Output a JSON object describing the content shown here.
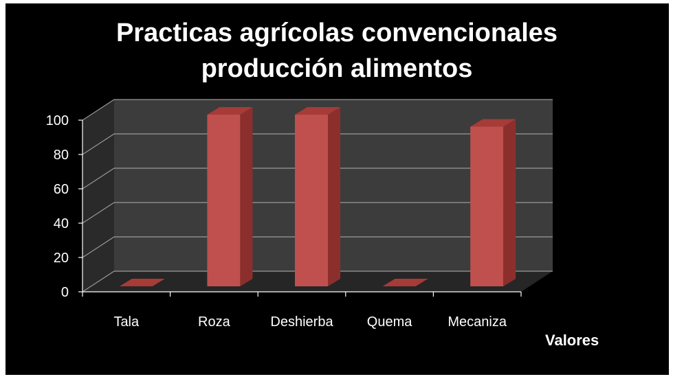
{
  "chart_data": {
    "type": "bar",
    "title_lines": [
      "Practicas agrícolas convencionales",
      "producción alimentos"
    ],
    "categories": [
      "Tala",
      "Roza",
      "Deshierba",
      "Quema",
      "Mecaniza"
    ],
    "series": [
      {
        "name": "Valores",
        "values": [
          0,
          100,
          100,
          0,
          93
        ]
      }
    ],
    "ylim": [
      0,
      100
    ],
    "yticks": [
      "0",
      "20",
      "40",
      "60",
      "80",
      "100"
    ],
    "xlabel": "",
    "ylabel": "",
    "grid": true,
    "legend": "bottom-right",
    "colors": {
      "bar_front": "#c0504d",
      "bar_side": "#8c2f2c",
      "bar_top": "#a63b38",
      "back_wall": "#3c3c3c",
      "side_wall": "#2a2a2a",
      "floor": "#262626",
      "grid": "#9a9a9a",
      "text": "#ffffff"
    }
  }
}
